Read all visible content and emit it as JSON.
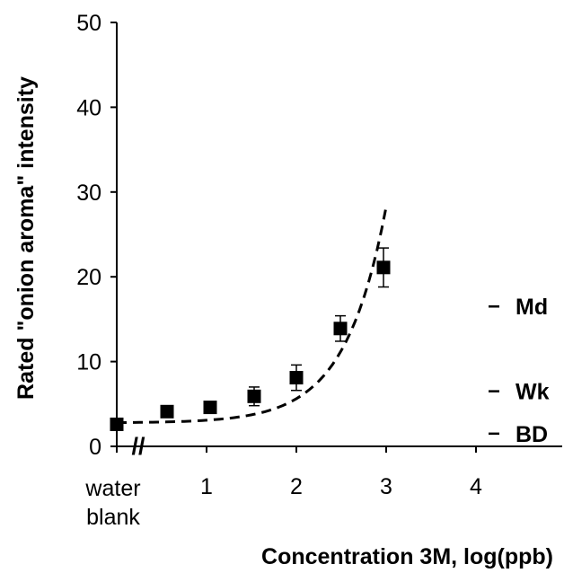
{
  "chart_data": {
    "type": "scatter",
    "xlabel": "Concentration 3M, log(ppb)",
    "ylabel": "Rated \"onion aroma\" intensity",
    "xlim": [
      0,
      5
    ],
    "ylim": [
      0,
      50
    ],
    "x_ticks": [
      {
        "value": 1,
        "label": "1"
      },
      {
        "value": 2,
        "label": "2"
      },
      {
        "value": 3,
        "label": "3"
      },
      {
        "value": 4,
        "label": "4"
      }
    ],
    "y_ticks": [
      {
        "value": 0,
        "label": "0"
      },
      {
        "value": 10,
        "label": "10"
      },
      {
        "value": 20,
        "label": "20"
      },
      {
        "value": 30,
        "label": "30"
      },
      {
        "value": 40,
        "label": "40"
      },
      {
        "value": 50,
        "label": "50"
      }
    ],
    "blank_label": [
      "water",
      "blank"
    ],
    "axis_break": "//",
    "points": [
      {
        "x": 0,
        "y": 2.6,
        "err": 0.4
      },
      {
        "x": 0.56,
        "y": 4.1,
        "err": 0.6
      },
      {
        "x": 1.04,
        "y": 4.6,
        "err": 0.5
      },
      {
        "x": 1.53,
        "y": 5.9,
        "err": 1.1
      },
      {
        "x": 2.0,
        "y": 8.1,
        "err": 1.5
      },
      {
        "x": 2.49,
        "y": 13.9,
        "err": 1.5
      },
      {
        "x": 2.97,
        "y": 21.1,
        "err": 2.3
      }
    ],
    "fit_curve": {
      "style": "dashed",
      "a": 2.8,
      "b": 0.036,
      "c": 1.2,
      "x_range": [
        0,
        3.0
      ]
    },
    "reference_marks": [
      {
        "label": "Md",
        "y": 16.5
      },
      {
        "label": "Wk",
        "y": 6.5
      },
      {
        "label": "BD",
        "y": 1.5
      }
    ],
    "grid": false,
    "legend": "none"
  }
}
